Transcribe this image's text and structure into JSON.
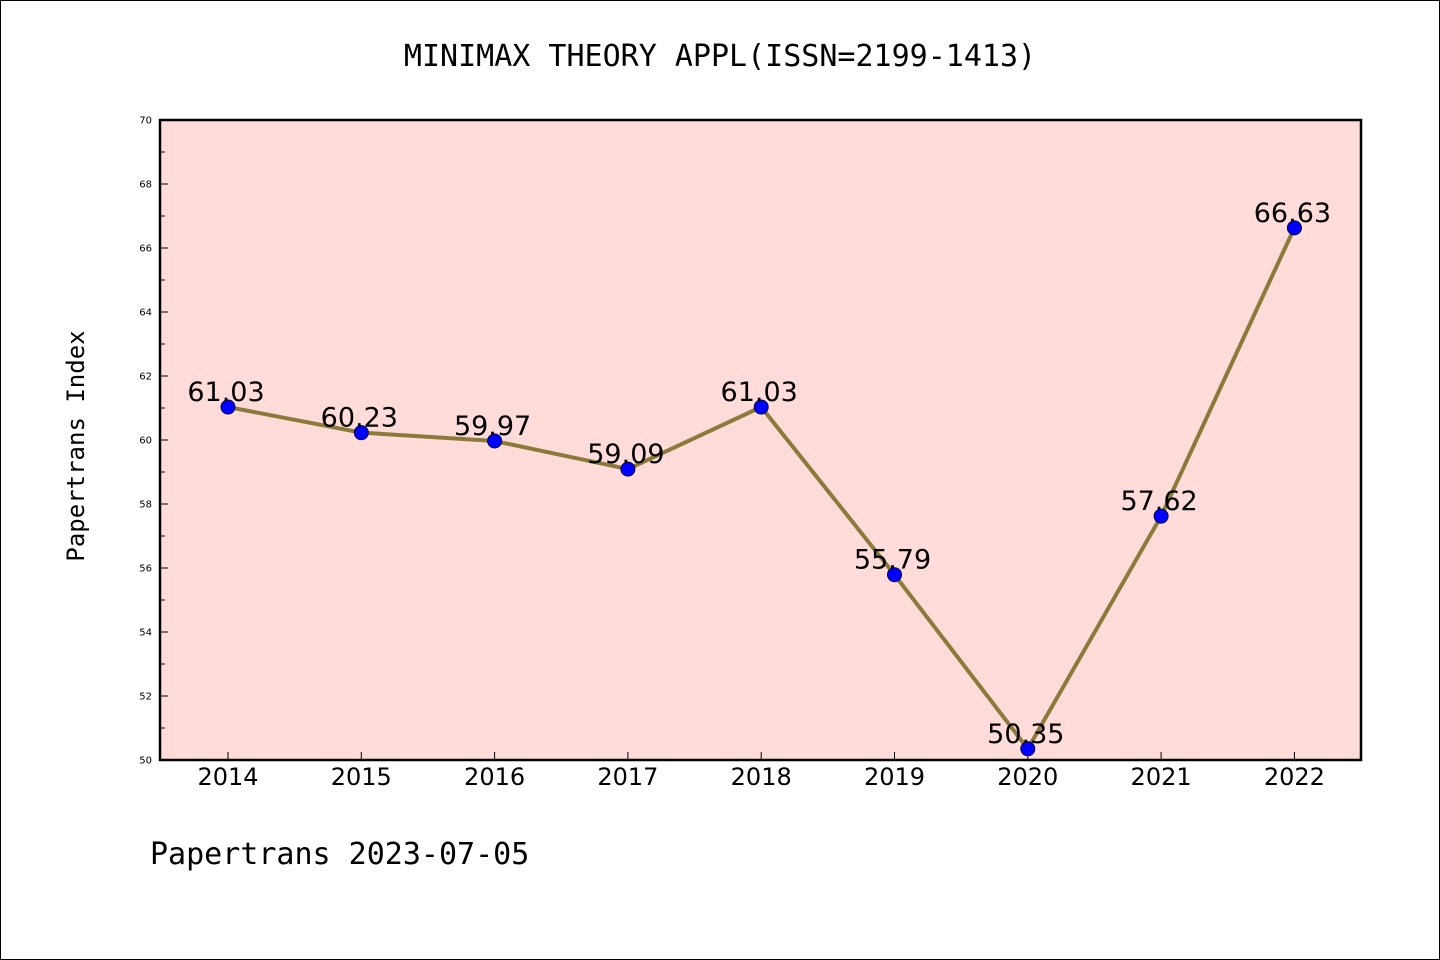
{
  "chart_data": {
    "type": "line",
    "title": "MINIMAX THEORY APPL(ISSN=2199-1413)",
    "xlabel": "",
    "ylabel": "Papertrans Index",
    "categories": [
      "2014",
      "2015",
      "2016",
      "2017",
      "2018",
      "2019",
      "2020",
      "2021",
      "2022"
    ],
    "series": [
      {
        "values": [
          61.03,
          60.23,
          59.97,
          59.09,
          61.03,
          55.79,
          50.35,
          57.62,
          66.63
        ],
        "labels": [
          "61.03",
          "60.23",
          "59.97",
          "59.09",
          "61.03",
          "55.79",
          "50.35",
          "57.62",
          "66.63"
        ]
      }
    ],
    "ylim": [
      50,
      70
    ],
    "yticks": [
      "50",
      "52",
      "54",
      "56",
      "58",
      "60",
      "62",
      "64",
      "66",
      "68",
      "70"
    ],
    "grid": false,
    "legend": "none",
    "colors": {
      "plot_background": "#ffdcd9",
      "line": "#8b7b3a",
      "marker": "#0000ff",
      "axis": "#000000"
    }
  },
  "footer": {
    "text": "Papertrans 2023-07-05"
  }
}
